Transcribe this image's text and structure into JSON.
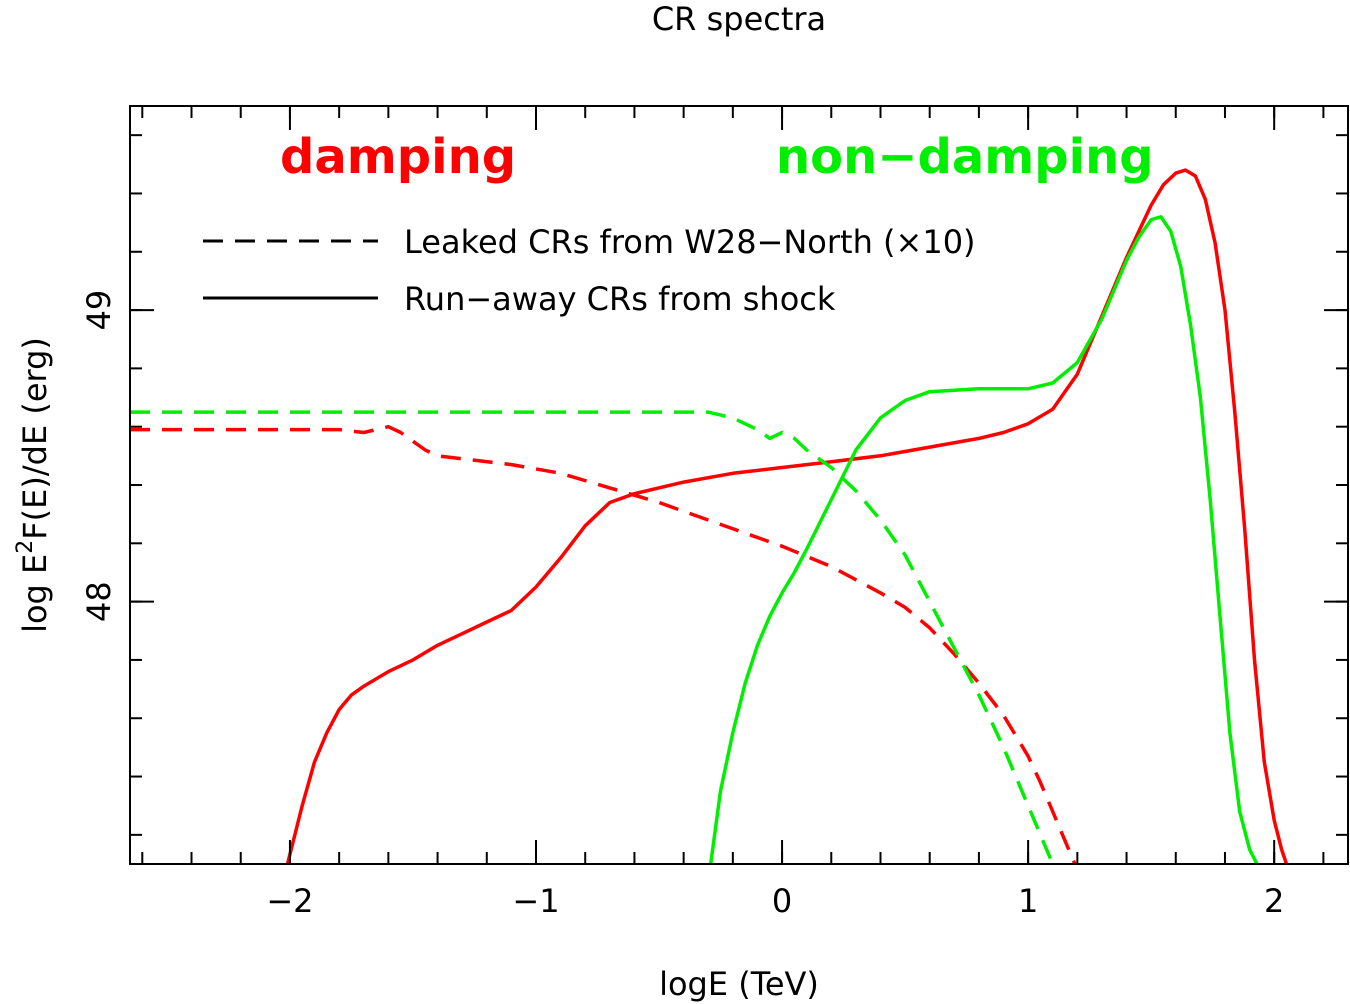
{
  "chart_data": {
    "type": "line",
    "title": "CR spectra",
    "xlabel": "logE (TeV)",
    "ylabel_parts": [
      "log E",
      "2",
      "F(E)/dE (erg)"
    ],
    "xlim": [
      -2.65,
      2.3
    ],
    "ylim": [
      47.1,
      49.7
    ],
    "x_ticks": [
      {
        "value": -2,
        "label": "−2"
      },
      {
        "value": -1,
        "label": "−1"
      },
      {
        "value": 0,
        "label": "0"
      },
      {
        "value": 1,
        "label": "1"
      },
      {
        "value": 2,
        "label": "2"
      }
    ],
    "y_ticks": [
      {
        "value": 48,
        "label": "48"
      },
      {
        "value": 49,
        "label": "49"
      }
    ],
    "x_minor_step": 0.2,
    "y_minor_step": 0.2,
    "group_labels": [
      {
        "text": "damping",
        "color": "#ff0000"
      },
      {
        "text": "non−damping",
        "color": "#00ee00"
      }
    ],
    "legend": {
      "placement": "top-left",
      "entries": [
        {
          "label": "Leaked CRs from W28−North (×10)",
          "style": "dashed"
        },
        {
          "label": "Run−away CRs from shock",
          "style": "solid"
        }
      ]
    },
    "series": [
      {
        "color": "#ff0000",
        "style": "solid",
        "points": [
          [
            -2.01,
            47.1
          ],
          [
            -1.95,
            47.3
          ],
          [
            -1.9,
            47.45
          ],
          [
            -1.85,
            47.55
          ],
          [
            -1.8,
            47.63
          ],
          [
            -1.75,
            47.68
          ],
          [
            -1.7,
            47.71
          ],
          [
            -1.6,
            47.76
          ],
          [
            -1.5,
            47.8
          ],
          [
            -1.4,
            47.85
          ],
          [
            -1.3,
            47.89
          ],
          [
            -1.2,
            47.93
          ],
          [
            -1.1,
            47.97
          ],
          [
            -1.0,
            48.05
          ],
          [
            -0.9,
            48.15
          ],
          [
            -0.8,
            48.26
          ],
          [
            -0.7,
            48.34
          ],
          [
            -0.6,
            48.37
          ],
          [
            -0.4,
            48.41
          ],
          [
            -0.2,
            48.44
          ],
          [
            0.0,
            48.46
          ],
          [
            0.2,
            48.48
          ],
          [
            0.4,
            48.5
          ],
          [
            0.6,
            48.53
          ],
          [
            0.8,
            48.56
          ],
          [
            0.9,
            48.58
          ],
          [
            1.0,
            48.61
          ],
          [
            1.1,
            48.66
          ],
          [
            1.2,
            48.78
          ],
          [
            1.3,
            48.98
          ],
          [
            1.4,
            49.18
          ],
          [
            1.5,
            49.36
          ],
          [
            1.55,
            49.43
          ],
          [
            1.6,
            49.47
          ],
          [
            1.64,
            49.48
          ],
          [
            1.68,
            49.46
          ],
          [
            1.72,
            49.38
          ],
          [
            1.76,
            49.23
          ],
          [
            1.8,
            49.0
          ],
          [
            1.84,
            48.65
          ],
          [
            1.88,
            48.25
          ],
          [
            1.92,
            47.8
          ],
          [
            1.96,
            47.45
          ],
          [
            2.0,
            47.25
          ],
          [
            2.03,
            47.15
          ],
          [
            2.05,
            47.1
          ]
        ]
      },
      {
        "color": "#ff0000",
        "style": "dashed",
        "points": [
          [
            -2.65,
            48.59
          ],
          [
            -2.4,
            48.59
          ],
          [
            -2.2,
            48.59
          ],
          [
            -2.0,
            48.59
          ],
          [
            -1.8,
            48.59
          ],
          [
            -1.7,
            48.58
          ],
          [
            -1.6,
            48.6
          ],
          [
            -1.55,
            48.58
          ],
          [
            -1.5,
            48.55
          ],
          [
            -1.45,
            48.52
          ],
          [
            -1.4,
            48.5
          ],
          [
            -1.3,
            48.49
          ],
          [
            -1.1,
            48.47
          ],
          [
            -0.9,
            48.44
          ],
          [
            -0.7,
            48.39
          ],
          [
            -0.5,
            48.34
          ],
          [
            -0.3,
            48.28
          ],
          [
            -0.1,
            48.22
          ],
          [
            0.0,
            48.19
          ],
          [
            0.2,
            48.12
          ],
          [
            0.4,
            48.03
          ],
          [
            0.5,
            47.98
          ],
          [
            0.6,
            47.91
          ],
          [
            0.7,
            47.82
          ],
          [
            0.8,
            47.72
          ],
          [
            0.9,
            47.61
          ],
          [
            0.95,
            47.54
          ],
          [
            1.0,
            47.47
          ],
          [
            1.05,
            47.38
          ],
          [
            1.1,
            47.28
          ],
          [
            1.15,
            47.18
          ],
          [
            1.19,
            47.1
          ]
        ]
      },
      {
        "color": "#00ee00",
        "style": "solid",
        "points": [
          [
            -0.29,
            47.1
          ],
          [
            -0.25,
            47.35
          ],
          [
            -0.2,
            47.55
          ],
          [
            -0.15,
            47.72
          ],
          [
            -0.1,
            47.85
          ],
          [
            -0.05,
            47.95
          ],
          [
            0.0,
            48.03
          ],
          [
            0.05,
            48.1
          ],
          [
            0.1,
            48.18
          ],
          [
            0.2,
            48.35
          ],
          [
            0.3,
            48.52
          ],
          [
            0.4,
            48.63
          ],
          [
            0.5,
            48.69
          ],
          [
            0.6,
            48.72
          ],
          [
            0.8,
            48.73
          ],
          [
            1.0,
            48.73
          ],
          [
            1.1,
            48.75
          ],
          [
            1.2,
            48.82
          ],
          [
            1.3,
            48.97
          ],
          [
            1.4,
            49.17
          ],
          [
            1.45,
            49.25
          ],
          [
            1.5,
            49.31
          ],
          [
            1.54,
            49.32
          ],
          [
            1.58,
            49.27
          ],
          [
            1.62,
            49.15
          ],
          [
            1.66,
            48.95
          ],
          [
            1.7,
            48.7
          ],
          [
            1.74,
            48.35
          ],
          [
            1.78,
            47.95
          ],
          [
            1.82,
            47.55
          ],
          [
            1.86,
            47.28
          ],
          [
            1.9,
            47.15
          ],
          [
            1.93,
            47.1
          ]
        ]
      },
      {
        "color": "#00ee00",
        "style": "dashed",
        "points": [
          [
            -2.65,
            48.65
          ],
          [
            -2.4,
            48.65
          ],
          [
            -2.0,
            48.65
          ],
          [
            -1.5,
            48.65
          ],
          [
            -1.0,
            48.65
          ],
          [
            -0.5,
            48.65
          ],
          [
            -0.3,
            48.65
          ],
          [
            -0.2,
            48.63
          ],
          [
            -0.1,
            48.59
          ],
          [
            -0.05,
            48.56
          ],
          [
            0.0,
            48.58
          ],
          [
            0.05,
            48.56
          ],
          [
            0.1,
            48.52
          ],
          [
            0.2,
            48.46
          ],
          [
            0.3,
            48.38
          ],
          [
            0.4,
            48.28
          ],
          [
            0.5,
            48.16
          ],
          [
            0.6,
            48.0
          ],
          [
            0.7,
            47.84
          ],
          [
            0.8,
            47.68
          ],
          [
            0.9,
            47.5
          ],
          [
            0.95,
            47.4
          ],
          [
            1.0,
            47.3
          ],
          [
            1.05,
            47.2
          ],
          [
            1.1,
            47.1
          ]
        ]
      }
    ]
  }
}
